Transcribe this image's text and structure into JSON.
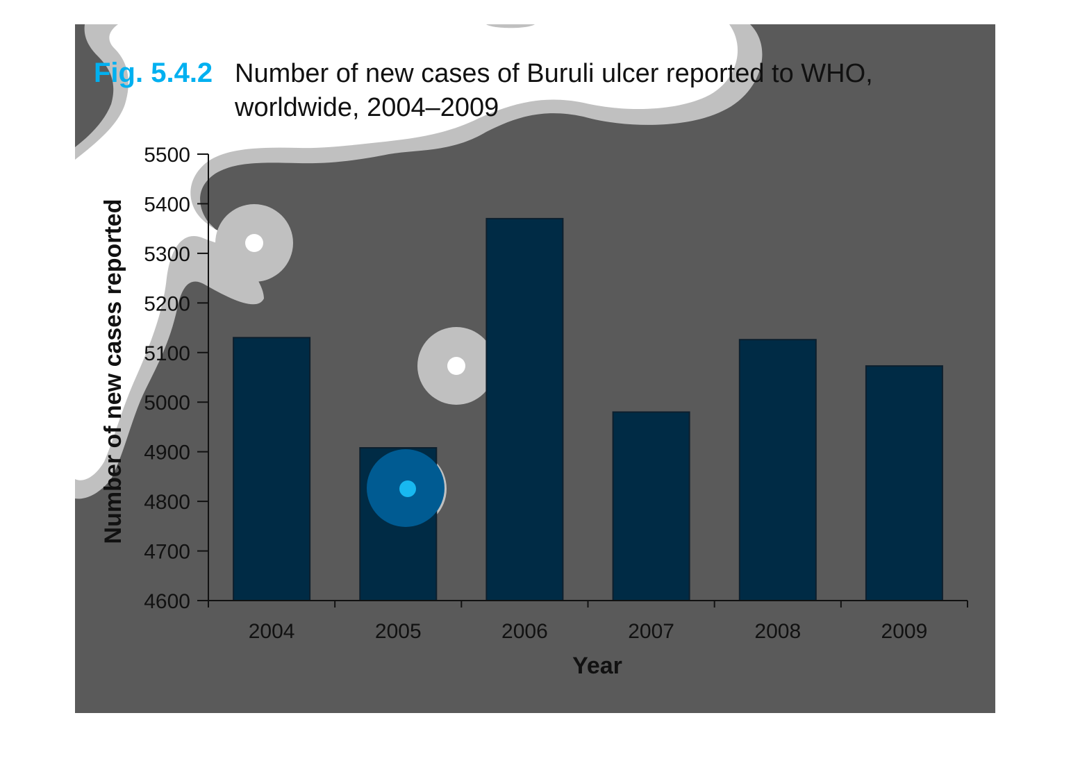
{
  "figure": {
    "label": "Fig. 5.4.2",
    "title_line1": "Number of new cases of Buruli ulcer reported to WHO,",
    "title_line2": "worldwide, 2004–2009"
  },
  "colors": {
    "background_panel": "#5a5a5a",
    "bar_fill": "#002b45",
    "bar_stroke": "#0d1f2d",
    "fig_label": "#00b0f0",
    "text": "#111111",
    "decoration_light": "#c0c0c0",
    "decoration_white": "#ffffff",
    "spot_blue": "#005b92",
    "spot_cyan": "#18b8f0"
  },
  "chart_data": {
    "type": "bar",
    "title": "Number of new cases of Buruli ulcer reported to WHO, worldwide, 2004–2009",
    "xlabel": "Year",
    "ylabel": "Number of new cases reported",
    "categories": [
      "2004",
      "2005",
      "2006",
      "2007",
      "2008",
      "2009"
    ],
    "values": [
      5130,
      4908,
      5370,
      4980,
      5126,
      5073
    ],
    "ylim": [
      4600,
      5500
    ],
    "yticks": [
      "4600",
      "4700",
      "4800",
      "4900",
      "5000",
      "5100",
      "5200",
      "5300",
      "5400",
      "5500"
    ],
    "grid": false,
    "legend": "none"
  }
}
